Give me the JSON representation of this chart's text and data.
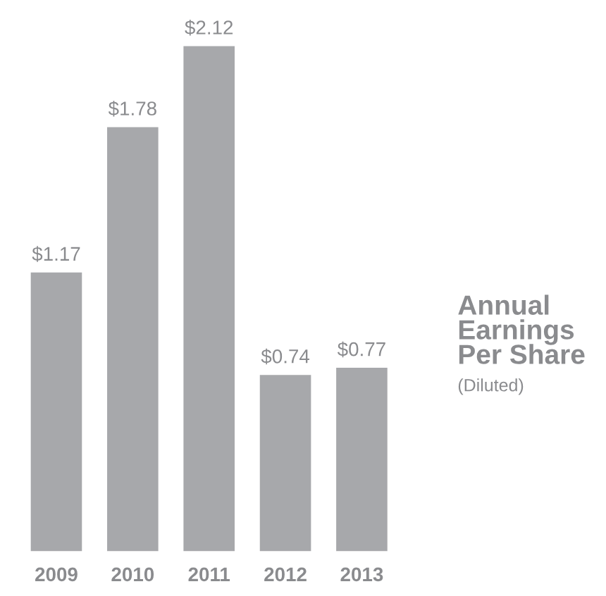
{
  "chart_data": {
    "type": "bar",
    "title": "Annual Earnings Per Share",
    "subtitle": "(Diluted)",
    "categories": [
      "2009",
      "2010",
      "2011",
      "2012",
      "2013"
    ],
    "values": [
      1.17,
      1.78,
      2.12,
      0.74,
      0.77
    ],
    "value_labels": [
      "$1.17",
      "$1.78",
      "$2.12",
      "$0.74",
      "$0.77"
    ],
    "color": "#a7a8ab",
    "grid": false,
    "legend": false
  }
}
